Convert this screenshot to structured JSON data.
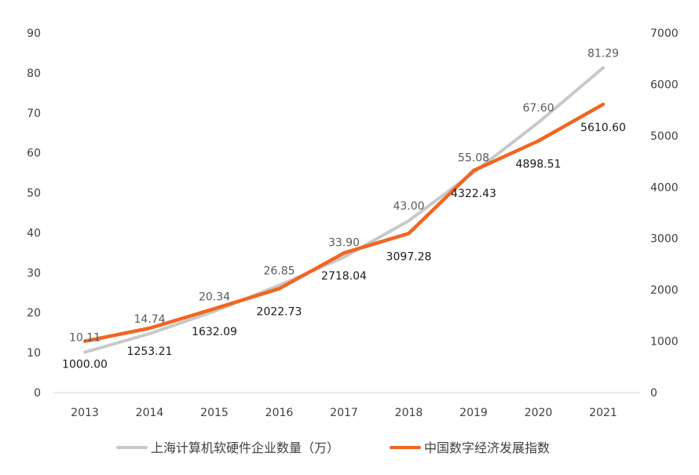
{
  "chart_data": {
    "type": "line",
    "categories": [
      "2013",
      "2014",
      "2015",
      "2016",
      "2017",
      "2018",
      "2019",
      "2020",
      "2021"
    ],
    "y_left": {
      "min": 0,
      "max": 90,
      "ticks": [
        "0",
        "10",
        "20",
        "30",
        "40",
        "50",
        "60",
        "70",
        "80",
        "90"
      ]
    },
    "y_right": {
      "min": 0,
      "max": 7000,
      "ticks": [
        "0",
        "1000",
        "2000",
        "3000",
        "4000",
        "5000",
        "6000",
        "7000"
      ]
    },
    "grid": false,
    "legend_position": "bottom",
    "series": [
      {
        "name": "上海计算机软硬件企业数量（万）",
        "axis": "left",
        "color": "#c8c8c8",
        "values": [
          10.11,
          14.74,
          20.34,
          26.85,
          33.9,
          43.0,
          55.08,
          67.6,
          81.29
        ],
        "labels": [
          "10.11",
          "14.74",
          "20.34",
          "26.85",
          "33.90",
          "43.00",
          "55.08",
          "67.60",
          "81.29"
        ]
      },
      {
        "name": "中国数字经济发展指数",
        "axis": "right",
        "color": "#f26522",
        "values": [
          1000.0,
          1253.21,
          1632.09,
          2022.73,
          2718.04,
          3097.28,
          4322.43,
          4898.51,
          5610.6
        ],
        "labels": [
          "1000.00",
          "1253.21",
          "1632.09",
          "2022.73",
          "2718.04",
          "3097.28",
          "4322.43",
          "4898.51",
          "5610.60"
        ]
      }
    ]
  }
}
